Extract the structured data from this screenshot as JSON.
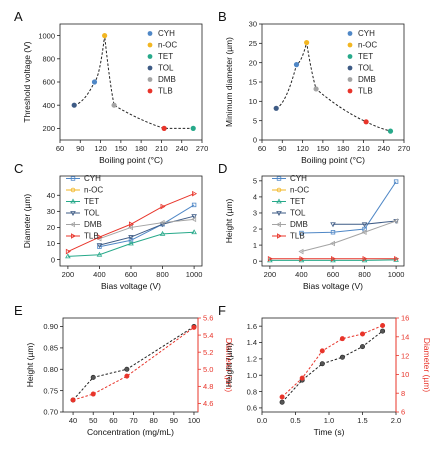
{
  "colors": {
    "CYH": "#4f87c6",
    "n-OC": "#f2b622",
    "TET": "#27a98a",
    "TOL": "#3e5b85",
    "DMB": "#a4a4a4",
    "TLB": "#e8342a",
    "black": "#222222",
    "red": "#e8342a"
  },
  "chart_data": [
    {
      "panel": "A",
      "type": "scatter",
      "xlabel": "Boiling point (°C)",
      "ylabel": "Threshold voltage (V)",
      "xlim": [
        60,
        270
      ],
      "ylim": [
        100,
        1100
      ],
      "xticks": [
        60,
        90,
        120,
        150,
        180,
        210,
        240,
        270
      ],
      "yticks": [
        200,
        400,
        600,
        800,
        1000
      ],
      "legend": [
        "CYH",
        "n-OC",
        "TET",
        "TOL",
        "DMB",
        "TLB"
      ],
      "points": [
        {
          "name": "TOL",
          "x": 81,
          "y": 400
        },
        {
          "name": "CYH",
          "x": 111,
          "y": 600
        },
        {
          "name": "n-OC",
          "x": 126,
          "y": 1000
        },
        {
          "name": "DMB",
          "x": 140,
          "y": 400
        },
        {
          "name": "TLB",
          "x": 214,
          "y": 200
        },
        {
          "name": "TET",
          "x": 257,
          "y": 200
        }
      ]
    },
    {
      "panel": "B",
      "type": "scatter",
      "xlabel": "Boiling point (°C)",
      "ylabel": "Minimum diameter (µm)",
      "xlim": [
        60,
        270
      ],
      "ylim": [
        0,
        30
      ],
      "xticks": [
        60,
        90,
        120,
        150,
        180,
        210,
        240,
        270
      ],
      "yticks": [
        0,
        5,
        10,
        15,
        20,
        25,
        30
      ],
      "legend": [
        "CYH",
        "n-OC",
        "TET",
        "TOL",
        "DMB",
        "TLB"
      ],
      "points": [
        {
          "name": "TOL",
          "x": 81,
          "y": 8.2
        },
        {
          "name": "CYH",
          "x": 111,
          "y": 19.5
        },
        {
          "name": "n-OC",
          "x": 126,
          "y": 25.2
        },
        {
          "name": "DMB",
          "x": 140,
          "y": 13.2
        },
        {
          "name": "TLB",
          "x": 214,
          "y": 4.7
        },
        {
          "name": "TET",
          "x": 250,
          "y": 2.3
        }
      ]
    },
    {
      "panel": "C",
      "type": "line",
      "xlabel": "Bias voltage (V)",
      "ylabel": "Diameter (µm)",
      "xlim": [
        150,
        1050
      ],
      "ylim": [
        -4,
        52
      ],
      "xticks": [
        200,
        400,
        600,
        800,
        1000
      ],
      "yticks": [
        0,
        10,
        20,
        30,
        40
      ],
      "legend": [
        "CYH",
        "n-OC",
        "TET",
        "TOL",
        "DMB",
        "TLB"
      ],
      "series": [
        {
          "name": "CYH",
          "x": [
            400,
            600,
            800,
            1000
          ],
          "y": [
            8,
            12,
            22,
            34
          ]
        },
        {
          "name": "n-OC",
          "x": [],
          "y": []
        },
        {
          "name": "TET",
          "x": [
            200,
            400,
            600,
            800,
            1000
          ],
          "y": [
            2,
            3,
            10,
            16,
            17
          ]
        },
        {
          "name": "TOL",
          "x": [
            400,
            600,
            800,
            1000
          ],
          "y": [
            9,
            14,
            22,
            27
          ]
        },
        {
          "name": "DMB",
          "x": [
            400,
            600,
            800,
            1000
          ],
          "y": [
            13,
            20,
            23,
            25
          ]
        },
        {
          "name": "TLB",
          "x": [
            200,
            400,
            600,
            800,
            1000
          ],
          "y": [
            5,
            14,
            22,
            33,
            41
          ]
        }
      ]
    },
    {
      "panel": "D",
      "type": "line",
      "xlabel": "Bias voltage (V)",
      "ylabel": "Height (µm)",
      "xlim": [
        150,
        1050
      ],
      "ylim": [
        -0.3,
        5.3
      ],
      "xticks": [
        200,
        400,
        600,
        800,
        1000
      ],
      "yticks": [
        0,
        1,
        2,
        3,
        4,
        5
      ],
      "legend": [
        "CYH",
        "n-OC",
        "TET",
        "TOL",
        "DMB",
        "TLB"
      ],
      "series": [
        {
          "name": "CYH",
          "x": [
            400,
            600,
            800,
            1000
          ],
          "y": [
            1.75,
            1.8,
            2.0,
            4.95
          ]
        },
        {
          "name": "n-OC",
          "x": [],
          "y": []
        },
        {
          "name": "TET",
          "x": [
            200,
            400,
            600,
            800,
            1000
          ],
          "y": [
            0.05,
            0.05,
            0.05,
            0.05,
            0.08
          ]
        },
        {
          "name": "TOL",
          "x": [
            600,
            800,
            1000
          ],
          "y": [
            2.3,
            2.3,
            2.5
          ]
        },
        {
          "name": "DMB",
          "x": [
            400,
            600,
            800,
            1000
          ],
          "y": [
            0.6,
            1.1,
            1.8,
            2.5
          ]
        },
        {
          "name": "TLB",
          "x": [
            200,
            400,
            600,
            800,
            1000
          ],
          "y": [
            0.15,
            0.15,
            0.15,
            0.15,
            0.15
          ]
        }
      ]
    },
    {
      "panel": "E",
      "type": "line",
      "xlabel": "Concentration (mg/mL)",
      "ylabel": "Height (µm)",
      "y2label": "Diameter (µm)",
      "xlim": [
        35,
        102
      ],
      "ylim": [
        0.7,
        0.92
      ],
      "y2lim": [
        4.5,
        5.6
      ],
      "xticks": [
        40,
        50,
        60,
        70,
        80,
        90,
        100
      ],
      "yticks": [
        0.7,
        0.75,
        0.8,
        0.85,
        0.9
      ],
      "y2ticks": [
        4.6,
        4.8,
        5.0,
        5.2,
        5.4,
        5.6
      ],
      "series": [
        {
          "name": "Height",
          "axis": "left",
          "x": [
            40,
            50,
            66.7,
            100
          ],
          "y": [
            0.728,
            0.781,
            0.8,
            0.9
          ]
        },
        {
          "name": "Diameter",
          "axis": "right",
          "x": [
            40,
            50,
            66.7,
            100
          ],
          "y": [
            4.64,
            4.71,
            4.92,
            5.49
          ]
        }
      ]
    },
    {
      "panel": "F",
      "type": "line",
      "xlabel": "Time (s)",
      "ylabel": "Height (µm)",
      "y2label": "Diameter (µm)",
      "xlim": [
        0,
        2.0
      ],
      "ylim": [
        0.55,
        1.7
      ],
      "y2lim": [
        6,
        16
      ],
      "xticks": [
        0.0,
        0.5,
        1.0,
        1.5,
        2.0
      ],
      "yticks": [
        0.6,
        0.8,
        1.0,
        1.2,
        1.4,
        1.6
      ],
      "y2ticks": [
        6,
        8,
        10,
        12,
        14,
        16
      ],
      "series": [
        {
          "name": "Height",
          "axis": "left",
          "x": [
            0.3,
            0.6,
            0.9,
            1.2,
            1.5,
            1.8
          ],
          "y": [
            0.67,
            0.94,
            1.14,
            1.22,
            1.35,
            1.54
          ]
        },
        {
          "name": "Diameter",
          "axis": "right",
          "x": [
            0.3,
            0.6,
            0.9,
            1.2,
            1.5,
            1.8
          ],
          "y": [
            7.6,
            9.6,
            12.5,
            13.8,
            14.3,
            15.2
          ]
        }
      ]
    }
  ]
}
